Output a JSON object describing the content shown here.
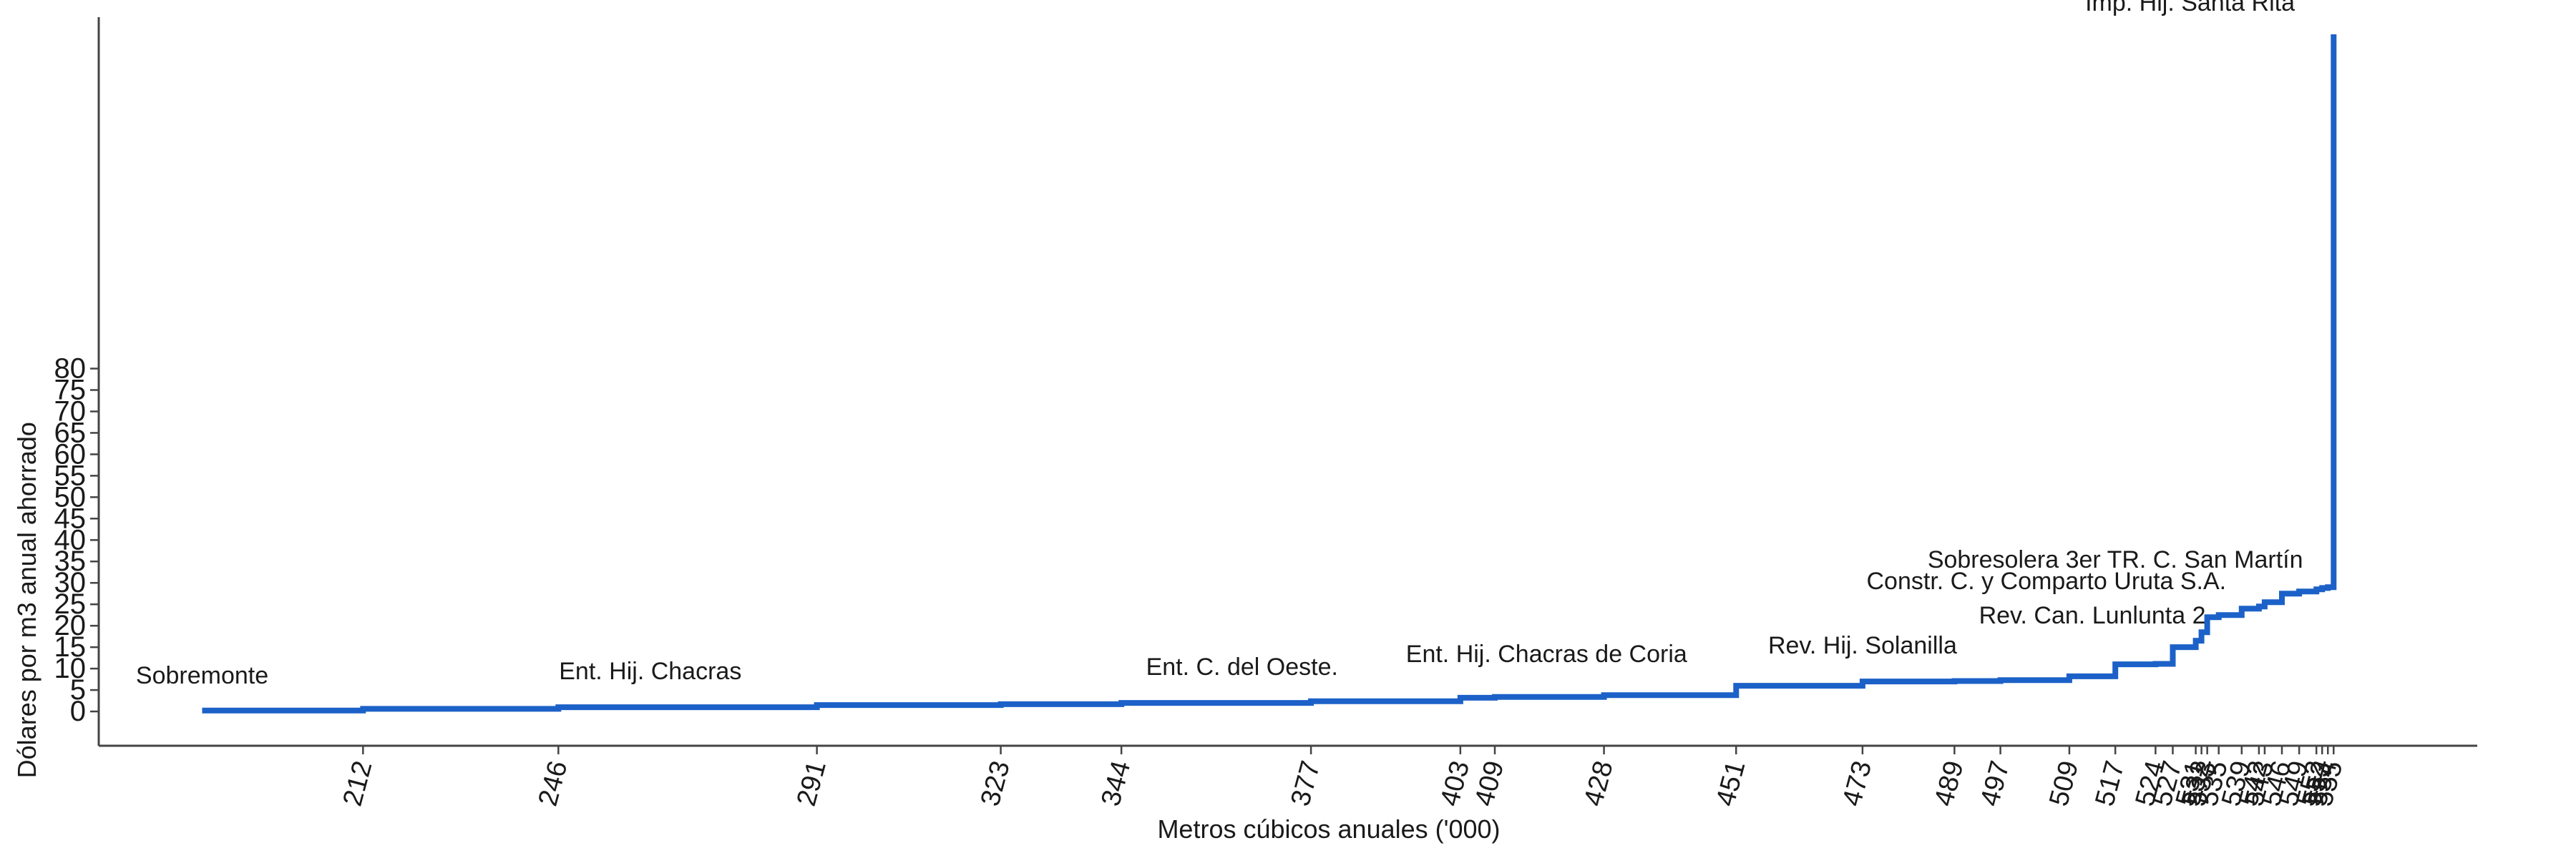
{
  "chart_data": {
    "type": "line",
    "style": "step",
    "xlabel": "Metros cúbicos anuales ('000)",
    "ylabel": "Dólares por m3 anual ahorrado",
    "xlim": [
      166,
      580
    ],
    "ylim": [
      -8,
      166
    ],
    "yticks": [
      0,
      5,
      10,
      15,
      20,
      25,
      30,
      35,
      40,
      45,
      50,
      55,
      60,
      65,
      70,
      75,
      80
    ],
    "xticks": [
      212,
      246,
      291,
      323,
      344,
      377,
      403,
      409,
      428,
      451,
      473,
      489,
      497,
      509,
      517,
      524,
      527,
      531,
      532,
      533,
      535,
      539,
      542,
      543,
      546,
      549,
      552,
      553,
      554,
      555
    ],
    "xtick_labels": [
      "212",
      "246",
      "291",
      "323",
      "344",
      "377",
      "403",
      "409",
      "428",
      "451",
      "473",
      "489",
      "497",
      "509",
      "517",
      "524",
      "527",
      "531",
      "532",
      "533",
      "535",
      "539",
      "542",
      "543",
      "546",
      "549",
      "552",
      "553",
      "554",
      "555"
    ],
    "grid": false,
    "series": [
      {
        "color": "#1c61c8",
        "x": [
          184,
          212,
          212,
          246,
          246,
          291,
          291,
          323,
          323,
          344,
          344,
          377,
          377,
          403,
          403,
          409,
          409,
          428,
          428,
          451,
          451,
          473,
          473,
          489,
          489,
          497,
          497,
          509,
          509,
          517,
          517,
          524,
          524,
          527,
          527,
          531,
          531,
          532,
          532,
          533,
          533,
          535,
          535,
          539,
          539,
          542,
          542,
          543,
          543,
          546,
          546,
          549,
          549,
          552,
          552,
          553,
          553,
          554,
          554,
          555,
          555
        ],
        "y": [
          0.2,
          0.2,
          0.6,
          0.6,
          1.0,
          1.0,
          1.5,
          1.5,
          1.7,
          1.7,
          2.0,
          2.0,
          2.4,
          2.4,
          3.2,
          3.2,
          3.4,
          3.4,
          3.8,
          3.8,
          6.0,
          6.0,
          7.0,
          7.0,
          7.1,
          7.1,
          7.3,
          7.3,
          8.2,
          8.2,
          11.0,
          11.0,
          11.1,
          11.1,
          15.0,
          15.0,
          16.5,
          16.5,
          18.5,
          18.5,
          22.0,
          22.0,
          22.5,
          22.5,
          24.0,
          24.0,
          24.5,
          24.5,
          25.5,
          25.5,
          27.5,
          27.5,
          28.0,
          28.0,
          28.5,
          28.5,
          28.8,
          28.8,
          29.0,
          29.0,
          158.0
        ]
      }
    ],
    "annotations": [
      {
        "text": "Sobremonte",
        "x": 184,
        "y": 6.5
      },
      {
        "text": "Ent. Hij. Chacras",
        "x": 262,
        "y": 7.5
      },
      {
        "text": "Ent. C. del Oeste.",
        "x": 365,
        "y": 8.5
      },
      {
        "text": "Ent. Hij. Chacras de Coria",
        "x": 418,
        "y": 11.5
      },
      {
        "text": "Rev. Hij. Solanilla",
        "x": 473,
        "y": 13.5
      },
      {
        "text": "Rev. Can. Lunlunta 2",
        "x": 513,
        "y": 20.5
      },
      {
        "text": "Constr. C. y Comparto Uruta S.A.",
        "x": 505,
        "y": 28.5
      },
      {
        "text": "Sobresolera 3er TR. C. San Martín",
        "x": 517,
        "y": 33.5
      },
      {
        "text": "Imp. Hij. Santa Rita",
        "x": 530,
        "y": 163.5
      }
    ]
  }
}
